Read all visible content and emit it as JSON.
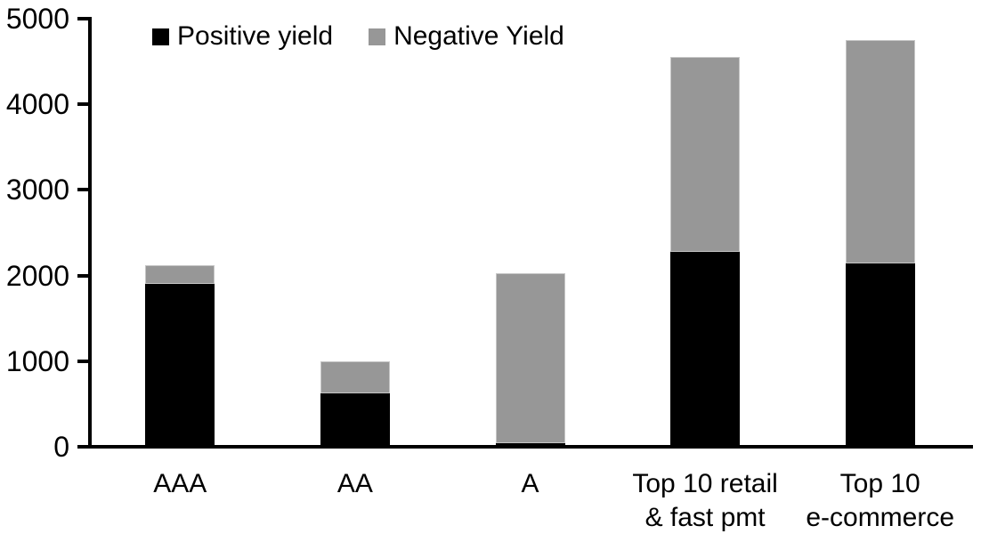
{
  "chart_data": {
    "type": "bar",
    "stacked": true,
    "title": "",
    "xlabel": "",
    "ylabel": "",
    "categories": [
      "AAA",
      "AA",
      "A",
      "Top 10 retail\n& fast pmt",
      "Top 10\ne-commerce"
    ],
    "series": [
      {
        "name": "Positive yield",
        "color": "#000000",
        "values": [
          1900,
          620,
          40,
          2280,
          2140
        ]
      },
      {
        "name": "Negative Yield",
        "color": "#979797",
        "values": [
          220,
          380,
          1990,
          2270,
          2610
        ]
      }
    ],
    "totals": [
      2120,
      1000,
      2030,
      4550,
      4750
    ],
    "y_axis": {
      "min": 0,
      "max": 5000,
      "step": 1000,
      "tick_labels": [
        "0",
        "1000",
        "2000",
        "3000",
        "4000",
        "5000"
      ]
    },
    "legend_position": "top-left-inside",
    "grid": false,
    "colors": {
      "positive": "#000000",
      "negative": "#979797",
      "axis": "#000000",
      "background": "#ffffff"
    }
  }
}
